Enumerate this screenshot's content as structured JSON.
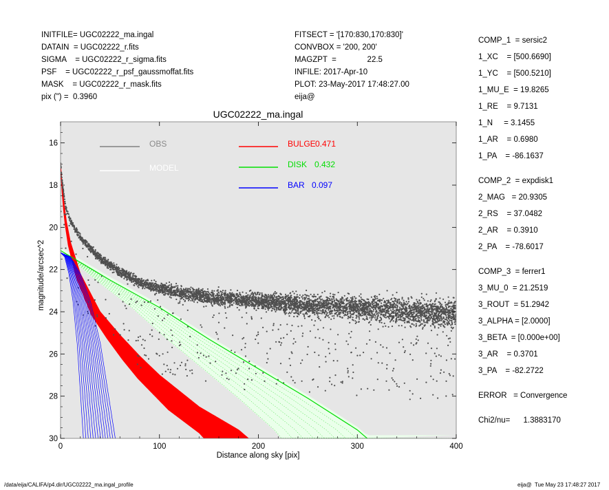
{
  "header_left": [
    "INITFILE= UGC02222_ma.ingal",
    "DATAIN  = UGC02222_r.fits",
    "SIGMA    = UGC02222_r_sigma.fits",
    "PSF    = UGC02222_r_psf_gaussmoffat.fits",
    "MASK    = UGC02222_r_mask.fits",
    "pix (\") =  0.3960"
  ],
  "header_mid": [
    "FITSECT = '[170:830,170:830]'",
    "CONVBOX = '200, 200'",
    "MAGZPT  =              22.5",
    "INFILE: 2017-Apr-10",
    "PLOT: 23-May-2017 17:48:27.00",
    "eija@"
  ],
  "components": [
    "COMP_1  = sersic2",
    "1_XC    = [500.6690]",
    "1_YC    = [500.5210]",
    "1_MU_E  = 19.8265",
    "1_RE    = 9.7131",
    "1_N     = 3.1455",
    "1_AR    = 0.6980",
    "1_PA    = -86.1637",
    "COMP_2  = expdisk1",
    "2_MAG   = 20.9305",
    "2_RS    = 37.0482",
    "2_AR    = 0.3910",
    "2_PA    = -78.6017",
    "COMP_3  = ferrer1",
    "3_MU_0  = 21.2519",
    "3_ROUT  = 51.2942",
    "3_ALPHA = [2.0000]",
    "3_BETA  = [0.000e+00]",
    "3_AR    = 0.3701",
    "3_PA    = -82.2722",
    "ERROR   = Convergence",
    "Chi2/nu=      1.3883170"
  ],
  "footer": {
    "left": "/data/eija/CALIFA/p4.dir/UGC02222_ma.ingal_profile",
    "right": "eija@  Tue May 23 17:48:27 2017"
  },
  "chart_data": {
    "type": "scatter",
    "title": "UGC02222_ma.ingal",
    "xlabel": "Distance along sky [pix]",
    "ylabel": "magnitude/arcsec^2",
    "xlim": [
      0,
      400
    ],
    "ylim": [
      30,
      15
    ],
    "y_inverted": true,
    "grid": false,
    "background": "#e6e6e6",
    "xticks": [
      0,
      100,
      200,
      300,
      400
    ],
    "yticks": [
      16,
      18,
      20,
      22,
      24,
      26,
      28,
      30
    ],
    "legend": [
      {
        "name": "OBS",
        "color": "#808080"
      },
      {
        "name": "MODEL",
        "color": "#ffffff"
      },
      {
        "name": "BULGE",
        "value": "0.471",
        "color": "#ff0000"
      },
      {
        "name": "DISK",
        "value": "0.432",
        "color": "#00e000"
      },
      {
        "name": "BAR",
        "value": "0.097",
        "color": "#0000ff"
      }
    ],
    "series": [
      {
        "name": "OBS",
        "color": "#555555",
        "x": [
          0,
          2,
          5,
          10,
          20,
          40,
          60,
          80,
          100,
          150,
          200,
          250,
          300,
          350,
          400
        ],
        "y": [
          17.0,
          18.0,
          19.0,
          19.7,
          20.5,
          21.5,
          22.1,
          22.6,
          22.9,
          23.3,
          23.5,
          23.7,
          23.8,
          24.0,
          24.1
        ]
      },
      {
        "name": "BULGE",
        "color": "#ff0000",
        "x": [
          0,
          2,
          5,
          10,
          20,
          40,
          60,
          80,
          100,
          140,
          180,
          190
        ],
        "y": [
          17.0,
          18.2,
          19.5,
          20.7,
          22.2,
          24.0,
          25.1,
          26.1,
          27.0,
          28.5,
          29.6,
          30.0
        ]
      },
      {
        "name": "DISK",
        "color": "#00dd00",
        "x": [
          0,
          50,
          100,
          150,
          200,
          250,
          300,
          310
        ],
        "y": [
          21.1,
          22.5,
          23.8,
          25.3,
          26.7,
          28.1,
          29.6,
          30.0
        ]
      },
      {
        "name": "BAR",
        "color": "#0000ff",
        "x": [
          0,
          10,
          20,
          30,
          40,
          50,
          55
        ],
        "y": [
          21.2,
          21.4,
          22.2,
          23.5,
          25.5,
          28.5,
          30.0
        ]
      }
    ]
  }
}
